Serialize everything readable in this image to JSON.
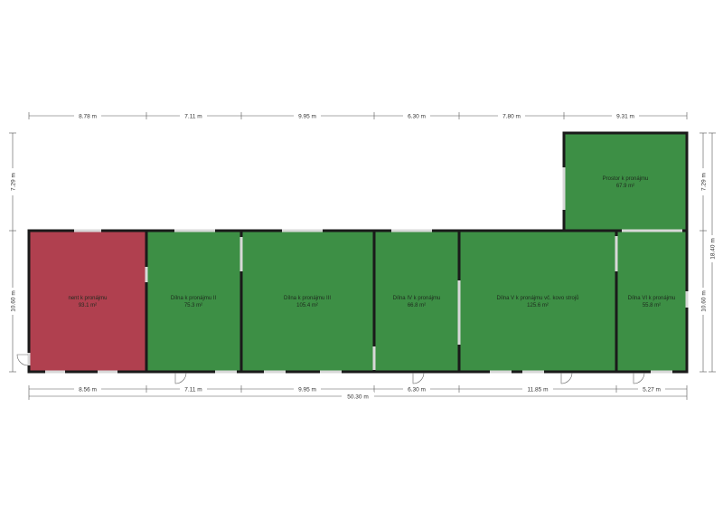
{
  "colors": {
    "rented": "#b0404f",
    "available": "#3d8f45",
    "wall": "#1a1a1a",
    "dimension": "#555555"
  },
  "rooms": [
    {
      "id": "room-1",
      "name": "nent k pronájmu",
      "area": "93.1 m²",
      "status": "rented"
    },
    {
      "id": "room-2",
      "name": "Dílna k pronájmu II",
      "area": "75.3 m²",
      "status": "available"
    },
    {
      "id": "room-3",
      "name": "Dílna k pronájmu  III",
      "area": "105.4 m²",
      "status": "available"
    },
    {
      "id": "room-4",
      "name": "Dílna IV k pronájmu",
      "area": "66.8 m²",
      "status": "available"
    },
    {
      "id": "room-5",
      "name": "Dílna V k pronájmu vč. kovo strojů",
      "area": "125.6 m²",
      "status": "available"
    },
    {
      "id": "room-6",
      "name": "Dílna VI k pronájmu",
      "area": "55.8 m²",
      "status": "available"
    },
    {
      "id": "room-7",
      "name": "Prostor k pronájmu",
      "area": "67.9 m²",
      "status": "available"
    }
  ],
  "dimensions": {
    "top": [
      "8.78 m",
      "7.11 m",
      "9.95 m",
      "6.30 m",
      "7.80 m",
      "9.31 m"
    ],
    "bottom": [
      "8.56 m",
      "7.11 m",
      "9.95 m",
      "6.30 m",
      "11.85 m",
      "5.27 m"
    ],
    "overall_bottom": "50.30 m",
    "left": [
      "7.29 m",
      "10.60 m"
    ],
    "right": [
      "7.29 m",
      "10.60 m"
    ],
    "right_overall": "18.40 m"
  }
}
